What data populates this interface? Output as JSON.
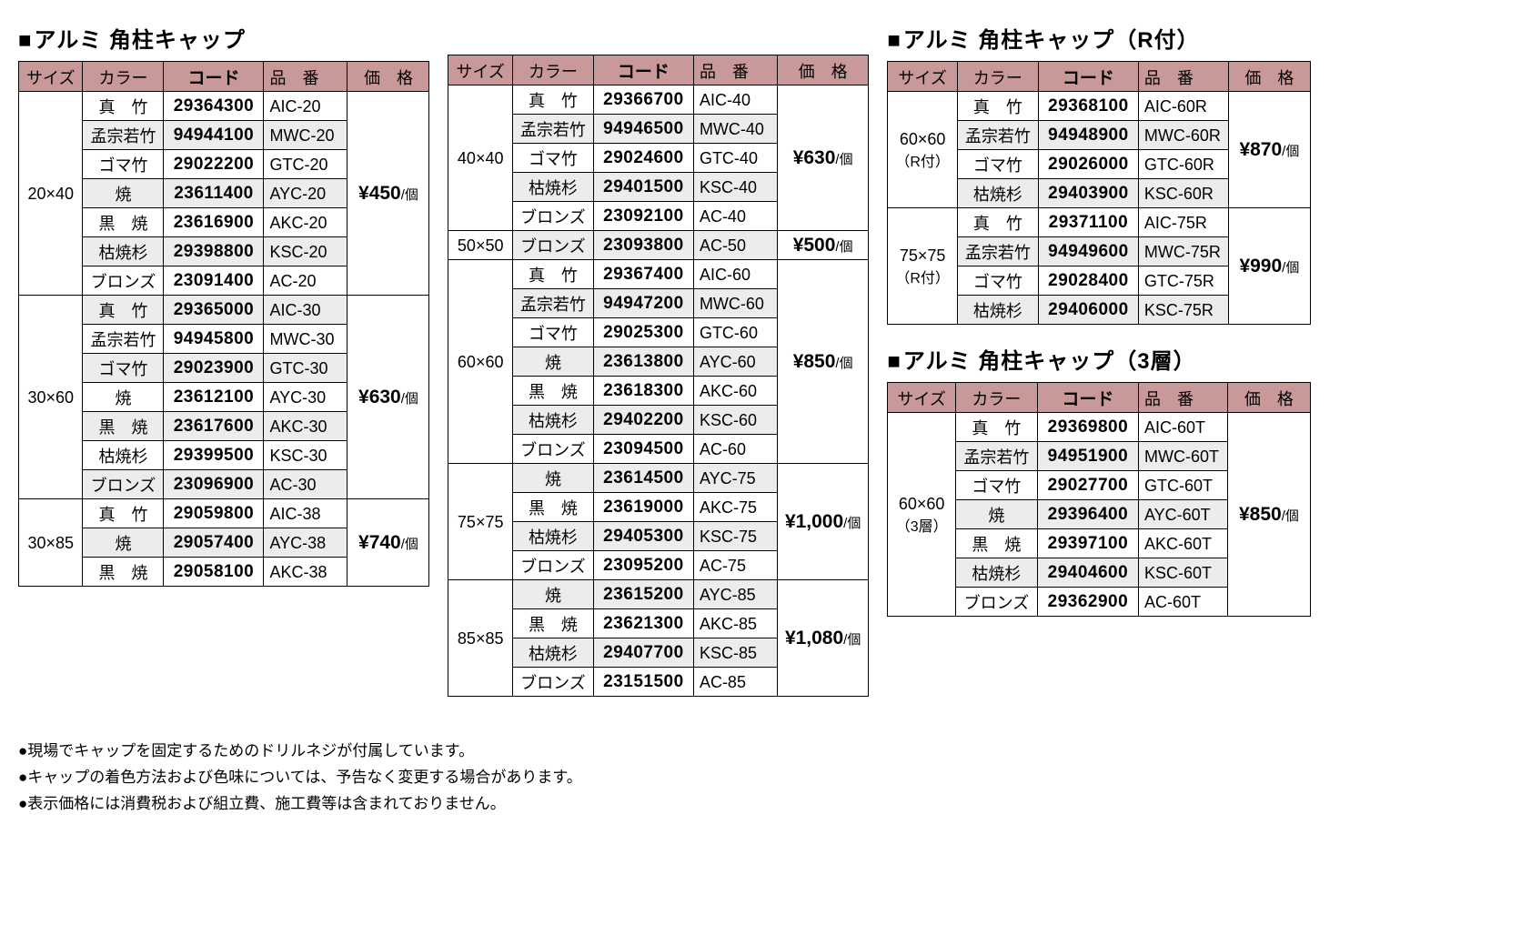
{
  "colors": {
    "header_bg": "#c99898",
    "shade_bg": "#ececec",
    "border": "#000000",
    "text": "#000000",
    "bg": "#ffffff"
  },
  "headers": {
    "size": "サイズ",
    "color": "カラー",
    "code": "コード",
    "part": "品　番",
    "price": "価　格"
  },
  "price_unit": "/個",
  "sections": [
    {
      "title": "アルミ 角柱キャップ",
      "column": 0,
      "groups": [
        {
          "size": "20×40",
          "price": "¥450",
          "rows": [
            {
              "color": "真　竹",
              "code": "29364300",
              "part": "AIC-20",
              "shade": false,
              "spaced": "s1"
            },
            {
              "color": "孟宗若竹",
              "code": "94944100",
              "part": "MWC-20",
              "shade": true
            },
            {
              "color": "ゴマ竹",
              "code": "29022200",
              "part": "GTC-20",
              "shade": false
            },
            {
              "color": "焼",
              "code": "23611400",
              "part": "AYC-20",
              "shade": true,
              "spaced": "s2"
            },
            {
              "color": "黒　焼",
              "code": "23616900",
              "part": "AKC-20",
              "shade": false,
              "spaced": "s1"
            },
            {
              "color": "枯焼杉",
              "code": "29398800",
              "part": "KSC-20",
              "shade": true
            },
            {
              "color": "ブロンズ",
              "code": "23091400",
              "part": "AC-20",
              "shade": false
            }
          ]
        },
        {
          "size": "30×60",
          "price": "¥630",
          "rows": [
            {
              "color": "真　竹",
              "code": "29365000",
              "part": "AIC-30",
              "shade": true,
              "spaced": "s1"
            },
            {
              "color": "孟宗若竹",
              "code": "94945800",
              "part": "MWC-30",
              "shade": false
            },
            {
              "color": "ゴマ竹",
              "code": "29023900",
              "part": "GTC-30",
              "shade": true
            },
            {
              "color": "焼",
              "code": "23612100",
              "part": "AYC-30",
              "shade": false,
              "spaced": "s2"
            },
            {
              "color": "黒　焼",
              "code": "23617600",
              "part": "AKC-30",
              "shade": true,
              "spaced": "s1"
            },
            {
              "color": "枯焼杉",
              "code": "29399500",
              "part": "KSC-30",
              "shade": false
            },
            {
              "color": "ブロンズ",
              "code": "23096900",
              "part": "AC-30",
              "shade": true
            }
          ]
        },
        {
          "size": "30×85",
          "price": "¥740",
          "rows": [
            {
              "color": "真　竹",
              "code": "29059800",
              "part": "AIC-38",
              "shade": false,
              "spaced": "s1"
            },
            {
              "color": "焼",
              "code": "29057400",
              "part": "AYC-38",
              "shade": true,
              "spaced": "s2"
            },
            {
              "color": "黒　焼",
              "code": "29058100",
              "part": "AKC-38",
              "shade": false,
              "spaced": "s1"
            }
          ]
        }
      ]
    },
    {
      "title": "",
      "column": 1,
      "groups": [
        {
          "size": "40×40",
          "price": "¥630",
          "rows": [
            {
              "color": "真　竹",
              "code": "29366700",
              "part": "AIC-40",
              "shade": false,
              "spaced": "s1"
            },
            {
              "color": "孟宗若竹",
              "code": "94946500",
              "part": "MWC-40",
              "shade": true
            },
            {
              "color": "ゴマ竹",
              "code": "29024600",
              "part": "GTC-40",
              "shade": false
            },
            {
              "color": "枯焼杉",
              "code": "29401500",
              "part": "KSC-40",
              "shade": true
            },
            {
              "color": "ブロンズ",
              "code": "23092100",
              "part": "AC-40",
              "shade": false
            }
          ]
        },
        {
          "size": "50×50",
          "price": "¥500",
          "rows": [
            {
              "color": "ブロンズ",
              "code": "23093800",
              "part": "AC-50",
              "shade": true
            }
          ]
        },
        {
          "size": "60×60",
          "price": "¥850",
          "rows": [
            {
              "color": "真　竹",
              "code": "29367400",
              "part": "AIC-60",
              "shade": false,
              "spaced": "s1"
            },
            {
              "color": "孟宗若竹",
              "code": "94947200",
              "part": "MWC-60",
              "shade": true
            },
            {
              "color": "ゴマ竹",
              "code": "29025300",
              "part": "GTC-60",
              "shade": false
            },
            {
              "color": "焼",
              "code": "23613800",
              "part": "AYC-60",
              "shade": true,
              "spaced": "s2"
            },
            {
              "color": "黒　焼",
              "code": "23618300",
              "part": "AKC-60",
              "shade": false,
              "spaced": "s1"
            },
            {
              "color": "枯焼杉",
              "code": "29402200",
              "part": "KSC-60",
              "shade": true
            },
            {
              "color": "ブロンズ",
              "code": "23094500",
              "part": "AC-60",
              "shade": false
            }
          ]
        },
        {
          "size": "75×75",
          "price": "¥1,000",
          "rows": [
            {
              "color": "焼",
              "code": "23614500",
              "part": "AYC-75",
              "shade": true,
              "spaced": "s2"
            },
            {
              "color": "黒　焼",
              "code": "23619000",
              "part": "AKC-75",
              "shade": false,
              "spaced": "s1"
            },
            {
              "color": "枯焼杉",
              "code": "29405300",
              "part": "KSC-75",
              "shade": true
            },
            {
              "color": "ブロンズ",
              "code": "23095200",
              "part": "AC-75",
              "shade": false
            }
          ]
        },
        {
          "size": "85×85",
          "price": "¥1,080",
          "rows": [
            {
              "color": "焼",
              "code": "23615200",
              "part": "AYC-85",
              "shade": true,
              "spaced": "s2"
            },
            {
              "color": "黒　焼",
              "code": "23621300",
              "part": "AKC-85",
              "shade": false,
              "spaced": "s1"
            },
            {
              "color": "枯焼杉",
              "code": "29407700",
              "part": "KSC-85",
              "shade": true
            },
            {
              "color": "ブロンズ",
              "code": "23151500",
              "part": "AC-85",
              "shade": false
            }
          ]
        }
      ]
    },
    {
      "title": "アルミ 角柱キャップ（R付）",
      "column": 2,
      "groups": [
        {
          "size": "60×60",
          "size_sub": "（R付）",
          "price": "¥870",
          "rows": [
            {
              "color": "真　竹",
              "code": "29368100",
              "part": "AIC-60R",
              "shade": false,
              "spaced": "s1"
            },
            {
              "color": "孟宗若竹",
              "code": "94948900",
              "part": "MWC-60R",
              "shade": true
            },
            {
              "color": "ゴマ竹",
              "code": "29026000",
              "part": "GTC-60R",
              "shade": false
            },
            {
              "color": "枯焼杉",
              "code": "29403900",
              "part": "KSC-60R",
              "shade": true
            }
          ]
        },
        {
          "size": "75×75",
          "size_sub": "（R付）",
          "price": "¥990",
          "rows": [
            {
              "color": "真　竹",
              "code": "29371100",
              "part": "AIC-75R",
              "shade": false,
              "spaced": "s1"
            },
            {
              "color": "孟宗若竹",
              "code": "94949600",
              "part": "MWC-75R",
              "shade": true
            },
            {
              "color": "ゴマ竹",
              "code": "29028400",
              "part": "GTC-75R",
              "shade": false
            },
            {
              "color": "枯焼杉",
              "code": "29406000",
              "part": "KSC-75R",
              "shade": true
            }
          ]
        }
      ]
    },
    {
      "title": "アルミ 角柱キャップ（3層）",
      "column": 2,
      "groups": [
        {
          "size": "60×60",
          "size_sub": "（3層）",
          "price": "¥850",
          "rows": [
            {
              "color": "真　竹",
              "code": "29369800",
              "part": "AIC-60T",
              "shade": false,
              "spaced": "s1"
            },
            {
              "color": "孟宗若竹",
              "code": "94951900",
              "part": "MWC-60T",
              "shade": true
            },
            {
              "color": "ゴマ竹",
              "code": "29027700",
              "part": "GTC-60T",
              "shade": false
            },
            {
              "color": "焼",
              "code": "29396400",
              "part": "AYC-60T",
              "shade": true,
              "spaced": "s2"
            },
            {
              "color": "黒　焼",
              "code": "29397100",
              "part": "AKC-60T",
              "shade": false,
              "spaced": "s1"
            },
            {
              "color": "枯焼杉",
              "code": "29404600",
              "part": "KSC-60T",
              "shade": true
            },
            {
              "color": "ブロンズ",
              "code": "29362900",
              "part": "AC-60T",
              "shade": false
            }
          ]
        }
      ]
    }
  ],
  "notes": [
    "現場でキャップを固定するためのドリルネジが付属しています。",
    "キャップの着色方法および色味については、予告なく変更する場合があります。",
    "表示価格には消費税および組立費、施工費等は含まれておりません。"
  ]
}
